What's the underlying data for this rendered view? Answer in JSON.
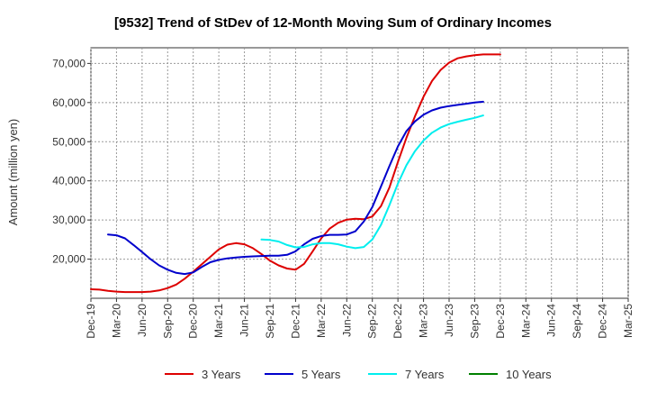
{
  "chart_data": {
    "type": "line",
    "title": "[9532]  Trend of StDev of 12-Month Moving Sum of Ordinary Incomes",
    "xlabel": "",
    "ylabel": "Amount (million yen)",
    "ylim": [
      10000,
      74000
    ],
    "yticks": [
      20000,
      30000,
      40000,
      50000,
      60000,
      70000
    ],
    "ytick_labels": [
      "20,000",
      "30,000",
      "40,000",
      "50,000",
      "60,000",
      "70,000"
    ],
    "xticks": [
      "Dec-19",
      "Mar-20",
      "Jun-20",
      "Sep-20",
      "Dec-20",
      "Mar-21",
      "Jun-21",
      "Sep-21",
      "Dec-21",
      "Mar-22",
      "Jun-22",
      "Sep-22",
      "Dec-22",
      "Mar-23",
      "Jun-23",
      "Sep-23",
      "Dec-23",
      "Mar-24",
      "Jun-24",
      "Sep-24",
      "Dec-24",
      "Mar-25"
    ],
    "grid": true,
    "legend_position": "bottom",
    "series": [
      {
        "name": "3 Years",
        "color": "#dd0000",
        "x_start": 0,
        "values": [
          12300,
          12200,
          11900,
          11700,
          11600,
          11600,
          11600,
          11700,
          12000,
          12600,
          13500,
          15000,
          16800,
          18700,
          20600,
          22500,
          23700,
          24100,
          23800,
          22800,
          21300,
          19600,
          18400,
          17600,
          17300,
          18800,
          22000,
          25300,
          27800,
          29300,
          30100,
          30300,
          30200,
          30900,
          33500,
          38300,
          44800,
          51000,
          56500,
          61500,
          65500,
          68300,
          70200,
          71300,
          71800,
          72100,
          72300,
          72300,
          72300
        ]
      },
      {
        "name": "5 Years",
        "color": "#0000cc",
        "x_start": 2,
        "values": [
          26300,
          26100,
          25300,
          23600,
          21800,
          20000,
          18400,
          17300,
          16500,
          16200,
          16600,
          18000,
          19200,
          19800,
          20200,
          20400,
          20600,
          20700,
          20800,
          20900,
          20900,
          21100,
          22000,
          23800,
          25200,
          25900,
          26200,
          26200,
          26300,
          27100,
          29600,
          33300,
          38500,
          43800,
          48800,
          52700,
          55200,
          56900,
          58000,
          58700,
          59100,
          59400,
          59700,
          60000,
          60200
        ]
      },
      {
        "name": "7 Years",
        "color": "#00eeee",
        "x_start": 20,
        "values": [
          25000,
          24900,
          24500,
          23600,
          23000,
          23100,
          23800,
          24100,
          24100,
          23800,
          23200,
          22800,
          23100,
          25000,
          28700,
          33800,
          39300,
          44000,
          47600,
          50300,
          52300,
          53600,
          54500,
          55100,
          55600,
          56100,
          56700
        ]
      },
      {
        "name": "10 Years",
        "color": "#008000",
        "x_start": 0,
        "values": []
      }
    ]
  }
}
